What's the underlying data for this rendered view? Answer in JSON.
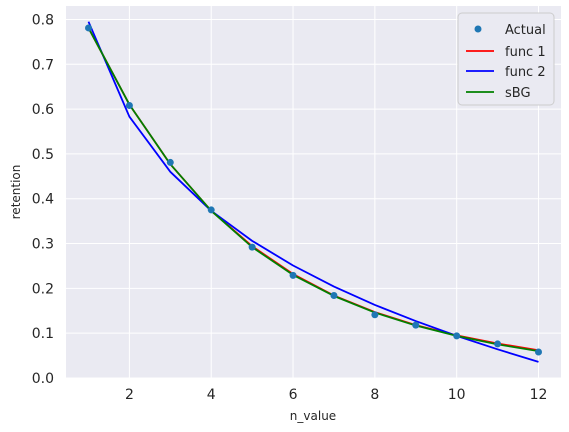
{
  "chart_data": {
    "type": "line",
    "xlabel": "n_value",
    "ylabel": "retention",
    "xlim": [
      0.45,
      12.55
    ],
    "ylim": [
      0.0,
      0.83
    ],
    "xticks": [
      2,
      4,
      6,
      8,
      10,
      12
    ],
    "yticks": [
      0.0,
      0.1,
      0.2,
      0.3,
      0.4,
      0.5,
      0.6,
      0.7,
      0.8
    ],
    "grid": true,
    "legend_position": "top-right",
    "scatter": {
      "name": "Actual",
      "color": "#1f77b4",
      "x": [
        1,
        2,
        3,
        4,
        5,
        6,
        7,
        8,
        9,
        10,
        11,
        12
      ],
      "y": [
        0.781,
        0.608,
        0.481,
        0.375,
        0.292,
        0.229,
        0.184,
        0.141,
        0.118,
        0.094,
        0.076,
        0.058
      ]
    },
    "series": [
      {
        "name": "func 1",
        "color": "#ff0000",
        "x": [
          1,
          2,
          3,
          4,
          5,
          6,
          7,
          8,
          9,
          10,
          11,
          12
        ],
        "y": [
          0.781,
          0.61,
          0.477,
          0.373,
          0.294,
          0.232,
          0.184,
          0.147,
          0.118,
          0.095,
          0.077,
          0.062
        ]
      },
      {
        "name": "func 2",
        "color": "#0000ff",
        "x": [
          1,
          2,
          3,
          4,
          5,
          6,
          7,
          8,
          9,
          10,
          11,
          12
        ],
        "y": [
          0.795,
          0.583,
          0.46,
          0.373,
          0.306,
          0.251,
          0.204,
          0.163,
          0.127,
          0.094,
          0.064,
          0.036
        ]
      },
      {
        "name": "sBG",
        "color": "#008000",
        "x": [
          1,
          2,
          3,
          4,
          5,
          6,
          7,
          8,
          9,
          10,
          11,
          12
        ],
        "y": [
          0.781,
          0.61,
          0.477,
          0.373,
          0.292,
          0.23,
          0.183,
          0.146,
          0.117,
          0.094,
          0.075,
          0.06
        ]
      }
    ]
  }
}
